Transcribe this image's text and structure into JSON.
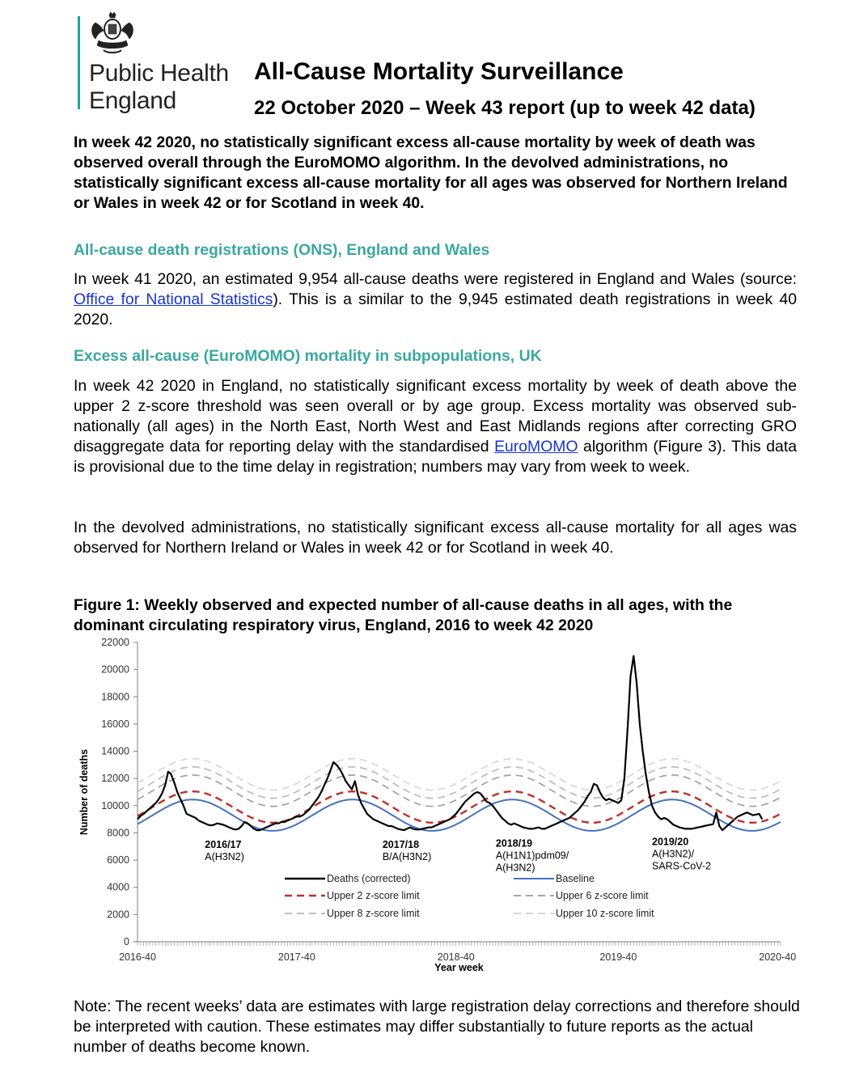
{
  "header": {
    "org_line1": "Public Health",
    "org_line2": "England",
    "title": "All-Cause Mortality Surveillance",
    "subtitle": "22 October 2020 – Week 43 report (up to week 42 data)"
  },
  "summary": "In week 42 2020, no statistically significant excess all-cause mortality by week of death was observed overall through the EuroMOMO algorithm. In the devolved administrations, no statistically significant excess all-cause mortality for all ages was observed for Northern Ireland or Wales in week 42 or for Scotland in week 40.",
  "section1": {
    "heading": "All-cause death registrations (ONS), England and Wales",
    "text_before": "In week 41 2020, an estimated 9,954 all-cause deaths were registered in England and Wales (source: ",
    "link": "Office for National Statistics",
    "text_after": "). This is a similar to the 9,945 estimated death registrations in week 40 2020."
  },
  "section2": {
    "heading": "Excess all-cause (EuroMOMO) mortality in subpopulations, UK",
    "para1_before": "In week 42 2020 in England, no statistically significant excess mortality by week of death above the upper 2 z-score threshold was seen overall or by age group. Excess mortality was observed sub-nationally (all ages) in the North East, North West and East Midlands regions after correcting GRO disaggregate data for reporting delay with the standardised ",
    "para1_link": "EuroMOMO",
    "para1_after": " algorithm (Figure 3). This data is provisional due to the time delay in registration; numbers may vary from week to week.",
    "para2": "In the devolved administrations, no statistically significant excess all-cause mortality for all ages was observed for Northern Ireland or Wales in week 42 or for Scotland in week 40."
  },
  "figure": {
    "caption": "Figure 1: Weekly observed and expected number of all-cause deaths in all ages, with the dominant circulating respiratory virus, England, 2016 to week 42 2020"
  },
  "chart_data": {
    "type": "line",
    "title": "",
    "xlabel": "Year week",
    "ylabel": "Number of deaths",
    "ylim": [
      0,
      22000
    ],
    "yticks": [
      0,
      2000,
      4000,
      6000,
      8000,
      10000,
      12000,
      14000,
      16000,
      18000,
      20000,
      22000
    ],
    "xticks": [
      "2016-40",
      "2017-40",
      "2018-40",
      "2019-40",
      "2020-40"
    ],
    "x_weeks": 211,
    "grid": false,
    "legend_position": "bottom-inside",
    "season_labels": [
      {
        "season": "2016/17",
        "virus": "A(H3N2)"
      },
      {
        "season": "2017/18",
        "virus": "B/A(H3N2)"
      },
      {
        "season": "2018/19",
        "virus": "A(H1N1)pdm09/ A(H3N2)"
      },
      {
        "season": "2019/20",
        "virus": "A(H3N2)/ SARS-CoV-2"
      }
    ],
    "series": [
      {
        "name": "Deaths (corrected)",
        "color": "#000000",
        "style": "solid",
        "values": [
          9000,
          9250,
          9400,
          9600,
          9800,
          10000,
          10200,
          10500,
          10900,
          11500,
          12500,
          12300,
          11700,
          11000,
          10500,
          10000,
          9400,
          9300,
          9200,
          9100,
          8900,
          8800,
          8700,
          8600,
          8550,
          8600,
          8700,
          8650,
          8600,
          8500,
          8400,
          8300,
          8250,
          8300,
          8500,
          8800,
          8700,
          8500,
          8300,
          8200,
          8200,
          8300,
          8400,
          8500,
          8600,
          8700,
          8700,
          8800,
          8800,
          8900,
          9000,
          9100,
          9200,
          9200,
          9300,
          9500,
          9700,
          10000,
          10300,
          10600,
          11000,
          11500,
          12000,
          12600,
          13200,
          13000,
          12700,
          12300,
          11800,
          11500,
          11200,
          11800,
          10800,
          10200,
          9800,
          9400,
          9200,
          9000,
          8900,
          8800,
          8700,
          8600,
          8500,
          8500,
          8400,
          8300,
          8250,
          8200,
          8300,
          8400,
          8300,
          8250,
          8250,
          8300,
          8350,
          8400,
          8400,
          8500,
          8600,
          8700,
          8800,
          8900,
          9000,
          9200,
          9400,
          9700,
          10000,
          10300,
          10500,
          10700,
          10900,
          11000,
          10900,
          10600,
          10300,
          10200,
          10000,
          9700,
          9400,
          9100,
          8900,
          8700,
          8600,
          8700,
          8600,
          8500,
          8400,
          8350,
          8300,
          8300,
          8350,
          8400,
          8300,
          8300,
          8400,
          8500,
          8600,
          8700,
          8800,
          8900,
          9000,
          9100,
          9300,
          9500,
          9700,
          10000,
          10300,
          10700,
          11000,
          11600,
          11500,
          11000,
          10600,
          10400,
          10500,
          10400,
          10300,
          10200,
          10400,
          12000,
          15500,
          19500,
          21000,
          19000,
          16000,
          14000,
          12300,
          11000,
          10000,
          9500,
          9200,
          9000,
          9100,
          9000,
          8800,
          8600,
          8500,
          8400,
          8350,
          8300,
          8300,
          8300,
          8350,
          8400,
          8450,
          8500,
          8550,
          8600,
          8650,
          9500,
          8500,
          8200,
          8400,
          8600,
          8800,
          9000,
          9200,
          9300,
          9400,
          9500,
          9400,
          9300,
          9350,
          9400,
          9000
        ]
      },
      {
        "name": "Baseline",
        "color": "#4472c4",
        "style": "solid"
      },
      {
        "name": "Upper 2 z-score limit",
        "color": "#c0302a",
        "style": "dashed"
      },
      {
        "name": "Upper 6 z-score limit",
        "color": "#a6a6a6",
        "style": "dashed"
      },
      {
        "name": "Upper 8 z-score limit",
        "color": "#bfbfbf",
        "style": "dashed"
      },
      {
        "name": "Upper 10 z-score limit",
        "color": "#d9d9d9",
        "style": "dashed"
      }
    ],
    "baseline_model": {
      "mean": 9300,
      "amplitude": 1150,
      "peak_week": 18,
      "period": 52.18
    },
    "limits_offsets": {
      "Upper 2 z-score limit": 600,
      "Upper 6 z-score limit": 1800,
      "Upper 8 z-score limit": 2400,
      "Upper 10 z-score limit": 3000
    }
  },
  "note": "Note: The recent weeks’ data are estimates with large registration delay corrections and therefore should be interpreted with caution. These estimates may differ substantially to future reports as the actual number of deaths become known."
}
